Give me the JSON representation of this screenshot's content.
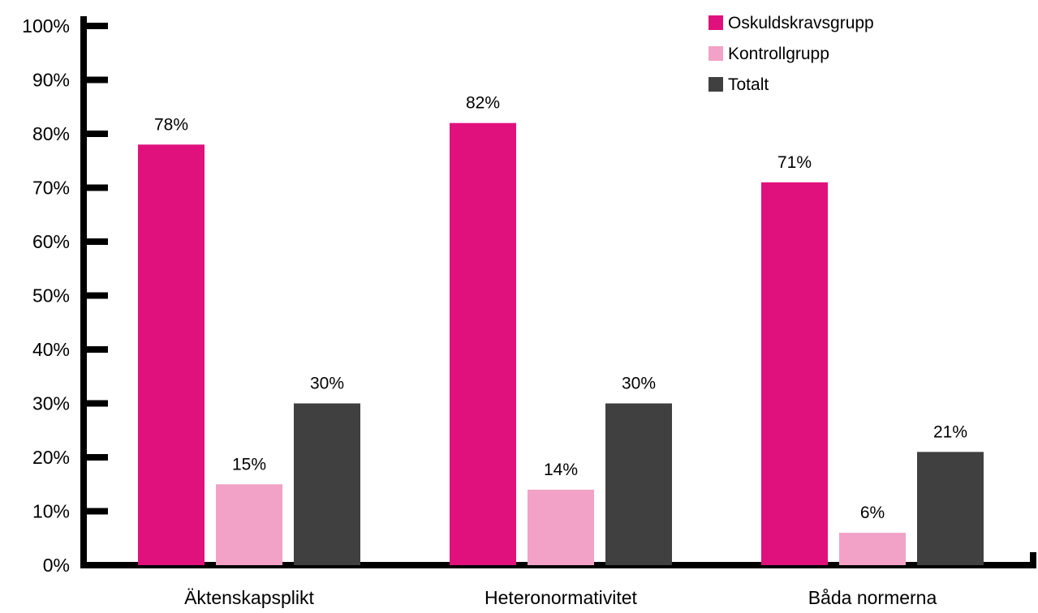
{
  "chart_data": {
    "type": "bar",
    "categories": [
      "Äktenskapsplikt",
      "Heteronormativitet",
      "Båda normerna"
    ],
    "series": [
      {
        "name": "Oskuldskravsgrupp",
        "values": [
          78,
          82,
          71
        ],
        "labels": [
          "78%",
          "82%",
          "71%"
        ],
        "color": "#e0117d"
      },
      {
        "name": "Kontrollgrupp",
        "values": [
          15,
          14,
          6
        ],
        "labels": [
          "15%",
          "14%",
          "6%"
        ],
        "color": "#f2a2c6"
      },
      {
        "name": "Totalt",
        "values": [
          30,
          30,
          21
        ],
        "labels": [
          "30%",
          "30%",
          "21%"
        ],
        "color": "#404040"
      }
    ],
    "y_ticks": [
      "0%",
      "10%",
      "20%",
      "30%",
      "40%",
      "50%",
      "60%",
      "70%",
      "80%",
      "90%",
      "100%"
    ],
    "ylim": [
      0,
      100
    ],
    "grid": false,
    "legend_position": "top-right",
    "axis_color": "#000000"
  }
}
